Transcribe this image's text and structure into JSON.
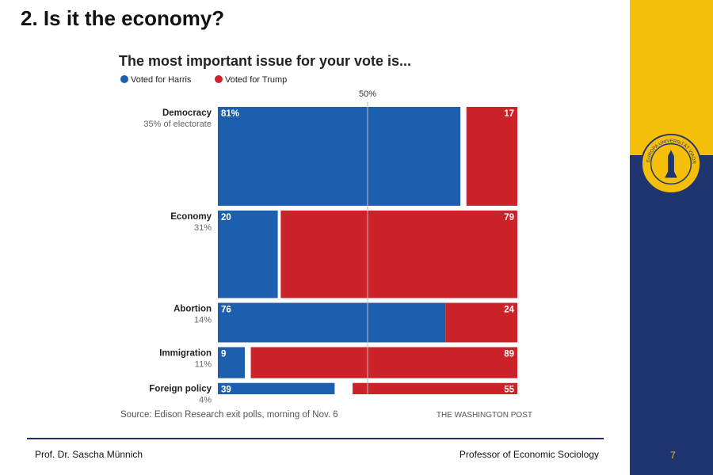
{
  "slide": {
    "title": "2. Is it the economy?",
    "footer_left": "Prof. Dr. Sascha Münnich",
    "footer_right": "Professor of Economic Sociology",
    "page_number": "7",
    "colors": {
      "sidebar_top": "#f5be09",
      "sidebar_bottom": "#1f3570",
      "footer_rule": "#1d2f6f",
      "page_number": "#f5be09"
    },
    "logo_icon": "university-seal-icon",
    "logo_text": "EUROPA UNIVERSITÄT VIADRINA"
  },
  "chart_data": {
    "type": "bar",
    "subtype": "stacked-horizontal-variable-height",
    "title": "The most important issue for your vote is...",
    "legend_position": "top-left",
    "series": [
      {
        "name": "Voted for Harris",
        "color": "#1c5fae",
        "values": [
          81,
          20,
          76,
          9,
          39
        ]
      },
      {
        "name": "Voted for Trump",
        "color": "#cc2229",
        "values": [
          17,
          79,
          24,
          89,
          55
        ]
      }
    ],
    "categories": [
      "Democracy",
      "Economy",
      "Abortion",
      "Immigration",
      "Foreign policy"
    ],
    "category_sublabels": [
      "35% of electorate",
      "31%",
      "14%",
      "11%",
      "4%"
    ],
    "electorate_share": [
      35,
      31,
      14,
      11,
      4
    ],
    "value_labels": [
      [
        "81%",
        "17"
      ],
      [
        "20",
        "79"
      ],
      [
        "76",
        "24"
      ],
      [
        "9",
        "89"
      ],
      [
        "39",
        "55"
      ]
    ],
    "xlim": [
      0,
      100
    ],
    "reference_line": {
      "value": 50,
      "label": "50%"
    },
    "source": "Source: Edison Research exit polls, morning of Nov. 6",
    "credit": "THE WASHINGTON POST",
    "grid": false
  }
}
